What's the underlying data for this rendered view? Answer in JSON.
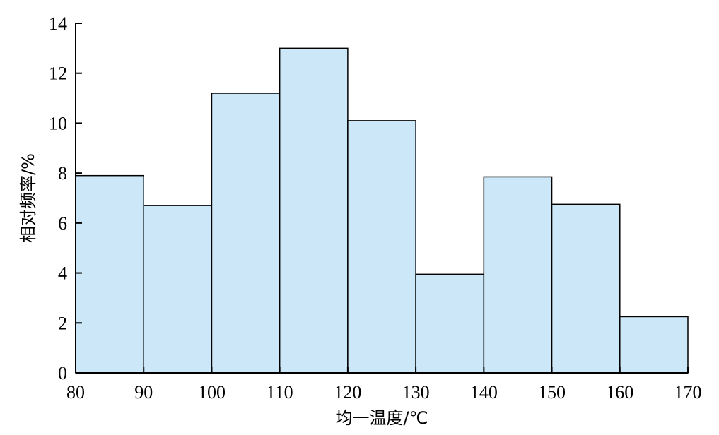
{
  "chart_data": {
    "type": "bar",
    "title": "",
    "xlabel": "均一温度/℃",
    "ylabel": "相对频率/%",
    "bin_edges": [
      80,
      90,
      100,
      110,
      120,
      130,
      140,
      150,
      160,
      170
    ],
    "values": [
      7.9,
      6.7,
      11.2,
      13.0,
      10.1,
      3.95,
      7.85,
      6.75,
      2.25
    ],
    "xlim": [
      80,
      170
    ],
    "ylim": [
      0,
      14
    ],
    "xticks": [
      80,
      90,
      100,
      110,
      120,
      130,
      140,
      150,
      160,
      170
    ],
    "yticks": [
      0,
      2,
      4,
      6,
      8,
      10,
      12,
      14
    ],
    "grid": false,
    "bar_color": "#cce7f8",
    "edge_color": "#000000"
  }
}
